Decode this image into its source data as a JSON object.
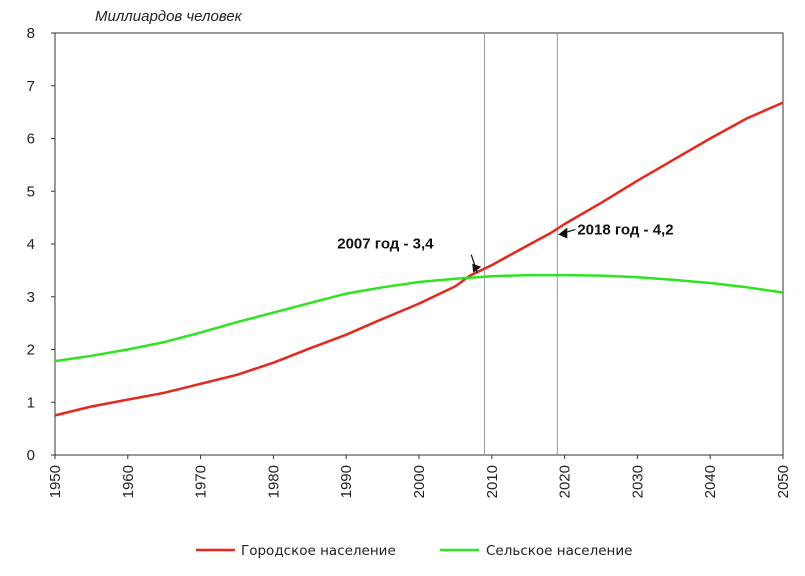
{
  "chart_data": {
    "type": "line",
    "title": "",
    "ylabel": "Миллиардов человек",
    "xlabel": "",
    "xlim": [
      1950,
      2050
    ],
    "ylim": [
      0,
      8
    ],
    "x_ticks": [
      "1950",
      "1960",
      "1970",
      "1980",
      "1990",
      "2000",
      "2010",
      "2020",
      "2030",
      "2040",
      "2050"
    ],
    "y_ticks": [
      "0",
      "1",
      "2",
      "3",
      "4",
      "5",
      "6",
      "7",
      "8"
    ],
    "grid": false,
    "legend_position": "bottom",
    "x": [
      1950,
      1955,
      1960,
      1965,
      1970,
      1975,
      1980,
      1985,
      1990,
      1995,
      2000,
      2005,
      2007,
      2010,
      2015,
      2018,
      2020,
      2025,
      2030,
      2035,
      2040,
      2045,
      2050
    ],
    "series": [
      {
        "name": "Городское население",
        "color": "#e8261c",
        "values": [
          0.75,
          0.92,
          1.05,
          1.18,
          1.35,
          1.52,
          1.75,
          2.02,
          2.28,
          2.58,
          2.87,
          3.2,
          3.4,
          3.6,
          3.98,
          4.2,
          4.38,
          4.78,
          5.2,
          5.6,
          6.0,
          6.38,
          6.68
        ]
      },
      {
        "name": "Сельское население",
        "color": "#2ee31f",
        "values": [
          1.78,
          1.88,
          2.0,
          2.14,
          2.32,
          2.52,
          2.7,
          2.88,
          3.06,
          3.18,
          3.28,
          3.34,
          3.36,
          3.39,
          3.41,
          3.41,
          3.41,
          3.4,
          3.37,
          3.32,
          3.26,
          3.18,
          3.08
        ]
      }
    ],
    "reference_lines": [
      2009,
      2019
    ],
    "annotations": [
      {
        "text": "2007 год - 3,4",
        "x": 2008,
        "y": 3.38
      },
      {
        "text": "2018 год - 4,2",
        "x": 2019,
        "y": 4.2
      }
    ]
  }
}
